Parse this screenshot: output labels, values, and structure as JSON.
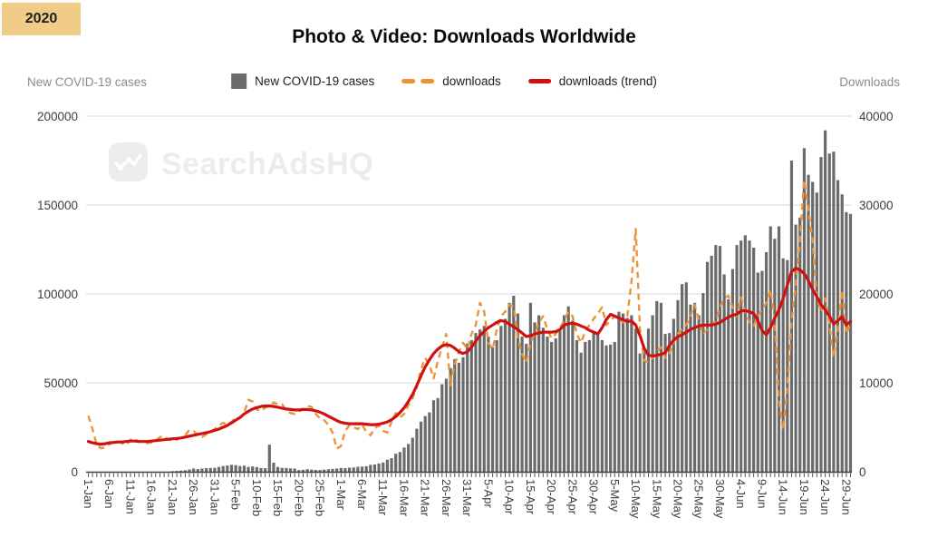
{
  "badge": {
    "year": "2020"
  },
  "title": "Photo & Video: Downloads Worldwide",
  "axis_titles": {
    "left": "New COVID-19 cases",
    "right": "Downloads"
  },
  "legend": [
    {
      "label": "New COVID-19 cases",
      "marker": "bar-swatch",
      "color": "#6b6b6b"
    },
    {
      "label": "downloads",
      "marker": "dashed-line-swatch",
      "color": "#ec9339"
    },
    {
      "label": "downloads (trend)",
      "marker": "line-swatch",
      "color": "#d01111"
    }
  ],
  "watermark": {
    "text": "SearchAdsHQ",
    "icon": "line-chart-logo-icon"
  },
  "chart_data": {
    "type": "bar",
    "subtype": "combo-bar-and-lines",
    "title": "Photo & Video: Downloads Worldwide",
    "grid": true,
    "legend_position": "top-center",
    "x_tick_labels": [
      "1-Jan",
      "6-Jan",
      "11-Jan",
      "16-Jan",
      "21-Jan",
      "26-Jan",
      "31-Jan",
      "5-Feb",
      "10-Feb",
      "15-Feb",
      "20-Feb",
      "25-Feb",
      "1-Mar",
      "6-Mar",
      "11-Mar",
      "16-Mar",
      "21-Mar",
      "26-Mar",
      "31-Mar",
      "5-Apr",
      "10-Apr",
      "15-Apr",
      "20-Apr",
      "25-Apr",
      "30-Apr",
      "5-May",
      "10-May",
      "15-May",
      "20-May",
      "25-May",
      "30-May",
      "4-Jun",
      "9-Jun",
      "14-Jun",
      "19-Jun",
      "24-Jun",
      "29-Jun"
    ],
    "x_tick_every_n_days": 5,
    "left_axis": {
      "label": "New COVID-19 cases",
      "range": [
        0,
        200000
      ],
      "ticks": [
        0,
        50000,
        100000,
        150000,
        200000
      ]
    },
    "right_axis": {
      "label": "Downloads",
      "range": [
        0,
        40000
      ],
      "ticks": [
        0,
        10000,
        20000,
        30000,
        40000
      ]
    },
    "series": [
      {
        "name": "New COVID-19 cases",
        "type": "bar",
        "axis": "left",
        "color": "#6b6b6b",
        "values": [
          0,
          0,
          0,
          0,
          0,
          0,
          0,
          0,
          0,
          0,
          0,
          0,
          0,
          0,
          0,
          0,
          0,
          0,
          0,
          0,
          300,
          450,
          650,
          850,
          1300,
          1800,
          1500,
          1750,
          2000,
          2100,
          2200,
          2700,
          3200,
          3500,
          3900,
          3700,
          3200,
          3400,
          2700,
          3000,
          2600,
          2100,
          2000,
          15200,
          5100,
          2700,
          2200,
          2100,
          1900,
          1800,
          900,
          1100,
          1400,
          1200,
          1000,
          1000,
          1200,
          1400,
          1600,
          1800,
          2100,
          2000,
          2300,
          2400,
          2800,
          2900,
          3100,
          3900,
          4100,
          4600,
          5200,
          6800,
          7600,
          10100,
          11100,
          13600,
          15600,
          19100,
          24200,
          28200,
          31300,
          33400,
          40200,
          41400,
          49200,
          52300,
          58300,
          63300,
          61300,
          64400,
          72100,
          74000,
          78000,
          80000,
          82000,
          76000,
          70000,
          74000,
          82000,
          86000,
          95000,
          99000,
          89000,
          76000,
          72000,
          95000,
          84000,
          88000,
          81000,
          76000,
          73000,
          75000,
          80000,
          88000,
          93000,
          85000,
          74000,
          67000,
          73000,
          74000,
          79000,
          77000,
          74000,
          71000,
          71500,
          73000,
          90000,
          89000,
          86500,
          88000,
          80500,
          66500,
          69000,
          80500,
          88000,
          96000,
          95000,
          77500,
          78000,
          86000,
          96500,
          105500,
          106500,
          94000,
          95000,
          88000,
          100500,
          118000,
          121500,
          127500,
          127000,
          111000,
          97000,
          114000,
          127500,
          130000,
          133000,
          130000,
          126000,
          112000,
          113000,
          123500,
          138000,
          131000,
          138000,
          120000,
          119000,
          175000,
          139000,
          143000,
          182000,
          167000,
          163000,
          157000,
          177000,
          192000,
          179000,
          180000,
          164000,
          156000,
          146000,
          145000
        ]
      },
      {
        "name": "downloads",
        "type": "line",
        "style": "dashed",
        "axis": "right",
        "color": "#ec9339",
        "values": [
          6300,
          4800,
          3000,
          2650,
          2700,
          3100,
          3300,
          3400,
          3200,
          3000,
          3600,
          3700,
          3400,
          3300,
          3200,
          3300,
          3500,
          3900,
          4000,
          3600,
          3500,
          3600,
          3800,
          4100,
          4700,
          4600,
          4100,
          3900,
          4200,
          4500,
          4800,
          5200,
          5500,
          5300,
          5600,
          6100,
          6000,
          6600,
          8100,
          7900,
          7000,
          6800,
          7200,
          7400,
          7800,
          7600,
          7600,
          6900,
          6600,
          6500,
          6800,
          7000,
          7400,
          7300,
          6500,
          6000,
          5800,
          5300,
          4400,
          2600,
          2900,
          4600,
          5200,
          5000,
          4800,
          5300,
          4500,
          4100,
          4900,
          5200,
          4600,
          4400,
          5600,
          6600,
          6100,
          6500,
          7500,
          8300,
          9500,
          11500,
          12800,
          12000,
          10500,
          12500,
          14000,
          15500,
          9700,
          12000,
          13500,
          14500,
          13800,
          15500,
          16500,
          19000,
          18000,
          14500,
          13800,
          16000,
          17500,
          18000,
          18800,
          18600,
          15000,
          13200,
          12300,
          14500,
          15500,
          16800,
          17500,
          16000,
          15000,
          15500,
          16200,
          17000,
          18000,
          17500,
          15500,
          14500,
          15800,
          16500,
          17200,
          17800,
          18500,
          16500,
          17000,
          17500,
          17200,
          16800,
          17500,
          21500,
          27300,
          16000,
          12500,
          12300,
          12800,
          13500,
          14000,
          12800,
          13300,
          14500,
          15500,
          16000,
          16500,
          17500,
          18800,
          17000,
          15500,
          16000,
          16500,
          17000,
          18500,
          19500,
          19800,
          18500,
          17500,
          19600,
          18000,
          16800,
          16400,
          17500,
          18200,
          19000,
          20500,
          17000,
          8000,
          4700,
          9500,
          17000,
          21000,
          26000,
          32800,
          29500,
          26000,
          19700,
          18000,
          19500,
          16500,
          12900,
          16000,
          20400,
          15500,
          16700
        ]
      },
      {
        "name": "downloads (trend)",
        "type": "line",
        "style": "solid",
        "axis": "right",
        "color": "#d01111",
        "values": [
          3400,
          3250,
          3150,
          3100,
          3150,
          3250,
          3300,
          3350,
          3350,
          3400,
          3450,
          3450,
          3400,
          3400,
          3400,
          3450,
          3500,
          3550,
          3600,
          3650,
          3700,
          3750,
          3800,
          3900,
          4000,
          4100,
          4200,
          4300,
          4400,
          4500,
          4650,
          4800,
          5000,
          5200,
          5500,
          5800,
          6100,
          6500,
          6800,
          7050,
          7200,
          7350,
          7400,
          7400,
          7350,
          7250,
          7150,
          7050,
          7000,
          6950,
          6950,
          7000,
          7000,
          6950,
          6850,
          6700,
          6500,
          6250,
          6000,
          5750,
          5550,
          5450,
          5400,
          5400,
          5400,
          5400,
          5350,
          5300,
          5300,
          5350,
          5450,
          5600,
          5850,
          6200,
          6650,
          7200,
          7900,
          8700,
          9700,
          10800,
          11800,
          12600,
          13300,
          13800,
          14150,
          14300,
          14200,
          13900,
          13500,
          13300,
          13500,
          14000,
          14700,
          15300,
          15800,
          16200,
          16500,
          16800,
          17000,
          16900,
          16600,
          16300,
          16000,
          15600,
          15200,
          15300,
          15500,
          15600,
          15700,
          15700,
          15700,
          15750,
          16000,
          16500,
          16650,
          16700,
          16600,
          16400,
          16200,
          15900,
          15700,
          15500,
          16200,
          17100,
          17700,
          17500,
          17300,
          17100,
          16900,
          16950,
          16500,
          15300,
          13900,
          13100,
          13000,
          13100,
          13200,
          13400,
          14200,
          14800,
          15200,
          15400,
          15700,
          16000,
          16200,
          16400,
          16500,
          16500,
          16500,
          16600,
          16800,
          17100,
          17400,
          17600,
          17700,
          18100,
          18100,
          18000,
          17800,
          17000,
          15900,
          15400,
          16200,
          17300,
          18200,
          19500,
          21000,
          22500,
          22900,
          22700,
          22300,
          21500,
          20500,
          19700,
          18800,
          18200,
          17500,
          16600,
          17000,
          17400,
          16500,
          16900
        ]
      }
    ]
  },
  "colors": {
    "badge_bg": "#f0cc86",
    "bar": "#6b6b6b",
    "downloads_line": "#ec9339",
    "trend_line": "#d01111",
    "gridline": "#d9d9d9",
    "axis_line": "#3f3f3f",
    "tick_text": "#3d3d3d",
    "axis_title_text": "#8b8b8b",
    "watermark": "#ececec"
  }
}
